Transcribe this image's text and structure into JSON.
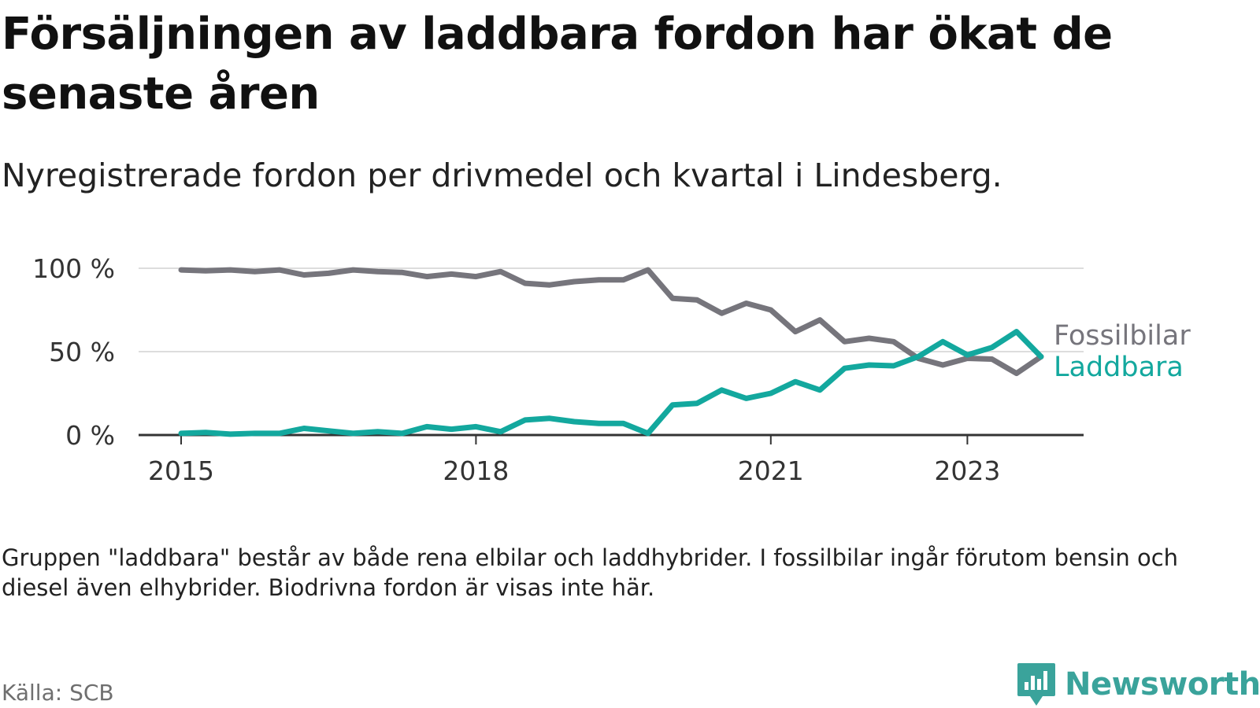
{
  "title": "Försäljningen av laddbara fordon har ökat de senaste åren",
  "subtitle": "Nyregistrerade fordon per drivmedel och kvartal i Lindesberg.",
  "note": "Gruppen \"laddbara\" består av både rena elbilar och laddhybrider. I fossilbilar ingår förutom bensin och diesel även elhybrider. Biodrivna fordon är visas inte här.",
  "source": "Källa: SCB",
  "brand": {
    "name": "Newsworthy"
  },
  "colors": {
    "fossil": "#76757c",
    "charge": "#13a89e",
    "grid": "#dddddd",
    "axis": "#333333",
    "brand": "#3aa39b"
  },
  "chart_data": {
    "type": "line",
    "title": "Försäljningen av laddbara fordon har ökat de senaste åren",
    "xlabel": "",
    "ylabel": "",
    "ylim": [
      0,
      100
    ],
    "x_range": [
      2015,
      2024.2
    ],
    "yticks": [
      0,
      50,
      100
    ],
    "ytick_labels": [
      "0 %",
      "50 %",
      "100 %"
    ],
    "xticks": [
      2015,
      2018,
      2021,
      2023
    ],
    "xtick_labels": [
      "2015",
      "2018",
      "2021",
      "2023"
    ],
    "grid": true,
    "legend": "inline-right",
    "x": [
      2015.0,
      2015.25,
      2015.5,
      2015.75,
      2016.0,
      2016.25,
      2016.5,
      2016.75,
      2017.0,
      2017.25,
      2017.5,
      2017.75,
      2018.0,
      2018.25,
      2018.5,
      2018.75,
      2019.0,
      2019.25,
      2019.5,
      2019.75,
      2020.0,
      2020.25,
      2020.5,
      2020.75,
      2021.0,
      2021.25,
      2021.5,
      2021.75,
      2022.0,
      2022.25,
      2022.5,
      2022.75,
      2023.0,
      2023.25,
      2023.5,
      2023.75
    ],
    "series": [
      {
        "name": "Fossilbilar",
        "color": "#76757c",
        "values": [
          99,
          98.5,
          99,
          98,
          99,
          96,
          97,
          99,
          98,
          97.5,
          95,
          96.5,
          95,
          98,
          91,
          90,
          92,
          93,
          93,
          99,
          82,
          81,
          73,
          79,
          75,
          62,
          69,
          56,
          58,
          56,
          46,
          42,
          46,
          45.5,
          37,
          47
        ]
      },
      {
        "name": "Laddbara",
        "color": "#13a89e",
        "values": [
          1,
          1.5,
          0.5,
          1,
          1,
          4,
          2.5,
          1,
          2,
          1,
          5,
          3.5,
          5,
          2,
          9,
          10,
          8,
          7,
          7,
          1,
          18,
          19,
          27,
          22,
          25,
          32,
          27,
          40,
          42,
          41.5,
          47,
          56,
          48,
          52.5,
          62,
          47
        ]
      }
    ]
  }
}
